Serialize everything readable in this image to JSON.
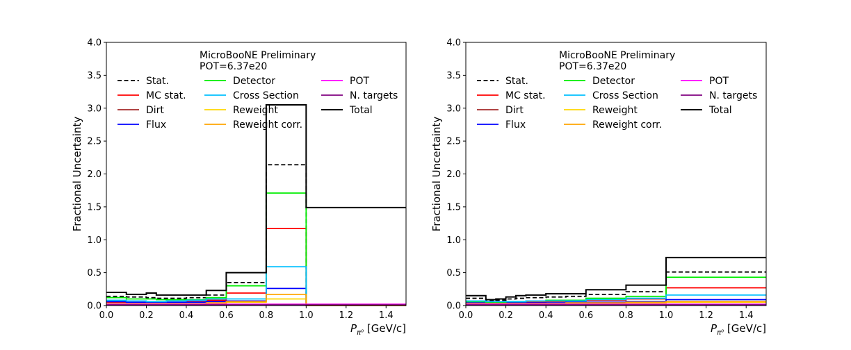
{
  "chart_data": [
    {
      "type": "line",
      "drawstyle": "steps",
      "annotation": [
        "MicroBooNE Preliminary",
        "POT=6.37e20"
      ],
      "xlabel": {
        "symbol": "P",
        "subscript": "π⁰",
        "unit": "[GeV/c]"
      },
      "ylabel": "Fractional Uncertainty",
      "xlim": [
        0,
        1.5
      ],
      "ylim": [
        0,
        4
      ],
      "xticks": [
        "0.0",
        "0.2",
        "0.4",
        "0.6",
        "0.8",
        "1.0",
        "1.2",
        "1.4"
      ],
      "yticks": [
        "0.0",
        "0.5",
        "1.0",
        "1.5",
        "2.0",
        "2.5",
        "3.0",
        "3.5",
        "4.0"
      ],
      "grid": false,
      "legend_position": "upper-center",
      "legend_columns": 3,
      "bin_edges": [
        0,
        0.1,
        0.2,
        0.25,
        0.3,
        0.4,
        0.5,
        0.6,
        0.8,
        1.0,
        1.5
      ],
      "series": [
        {
          "name": "Stat.",
          "color": "#000000",
          "dashed": true,
          "values": [
            0.14,
            0.13,
            0.12,
            0.11,
            0.11,
            0.12,
            0.16,
            0.35,
            2.14,
            0.0
          ]
        },
        {
          "name": "MC stat.",
          "color": "#ff0000",
          "values": [
            0.05,
            0.05,
            0.05,
            0.05,
            0.05,
            0.06,
            0.08,
            0.19,
            1.17,
            0.0
          ]
        },
        {
          "name": "Dirt",
          "color": "#a52a2a",
          "values": [
            0.02,
            0.02,
            0.02,
            0.02,
            0.02,
            0.02,
            0.02,
            0.02,
            0.02,
            0.02
          ]
        },
        {
          "name": "Flux",
          "color": "#0000ff",
          "values": [
            0.06,
            0.05,
            0.05,
            0.05,
            0.05,
            0.05,
            0.06,
            0.07,
            0.26,
            0.0
          ]
        },
        {
          "name": "Detector",
          "color": "#00ee00",
          "values": [
            0.12,
            0.1,
            0.1,
            0.09,
            0.09,
            0.09,
            0.12,
            0.3,
            1.71,
            0.0
          ]
        },
        {
          "name": "Cross Section",
          "color": "#00bfff",
          "values": [
            0.08,
            0.07,
            0.06,
            0.06,
            0.07,
            0.08,
            0.1,
            0.1,
            0.59,
            0.0
          ]
        },
        {
          "name": "Reweight",
          "color": "#ffd700",
          "values": [
            0.02,
            0.02,
            0.02,
            0.02,
            0.02,
            0.02,
            0.03,
            0.05,
            0.1,
            0.0
          ]
        },
        {
          "name": "Reweight corr.",
          "color": "#ffa500",
          "values": [
            0.03,
            0.03,
            0.03,
            0.03,
            0.03,
            0.03,
            0.04,
            0.06,
            0.17,
            0.0
          ]
        },
        {
          "name": "POT",
          "color": "#ff00ff",
          "values": [
            0.02,
            0.02,
            0.02,
            0.02,
            0.02,
            0.02,
            0.02,
            0.02,
            0.02,
            0.02
          ]
        },
        {
          "name": "N. targets",
          "color": "#800080",
          "values": [
            0.01,
            0.01,
            0.01,
            0.01,
            0.01,
            0.01,
            0.01,
            0.01,
            0.01,
            0.01
          ]
        },
        {
          "name": "Total",
          "color": "#000000",
          "thick": true,
          "values": [
            0.2,
            0.17,
            0.19,
            0.16,
            0.16,
            0.16,
            0.23,
            0.5,
            3.05,
            1.49
          ]
        }
      ]
    },
    {
      "type": "line",
      "drawstyle": "steps",
      "annotation": [
        "MicroBooNE Preliminary",
        "POT=6.37e20"
      ],
      "xlabel": {
        "symbol": "P",
        "subscript": "π⁰",
        "unit": "[GeV/c]"
      },
      "ylabel": "Fractional Uncertainty",
      "xlim": [
        0,
        1.5
      ],
      "ylim": [
        0,
        4
      ],
      "xticks": [
        "0.0",
        "0.2",
        "0.4",
        "0.6",
        "0.8",
        "1.0",
        "1.2",
        "1.4"
      ],
      "yticks": [
        "0.0",
        "0.5",
        "1.0",
        "1.5",
        "2.0",
        "2.5",
        "3.0",
        "3.5",
        "4.0"
      ],
      "grid": false,
      "legend_position": "upper-center",
      "legend_columns": 3,
      "bin_edges": [
        0,
        0.1,
        0.15,
        0.2,
        0.25,
        0.3,
        0.4,
        0.5,
        0.6,
        0.8,
        1.0,
        1.5
      ],
      "series": [
        {
          "name": "Stat.",
          "color": "#000000",
          "dashed": true,
          "values": [
            0.11,
            0.07,
            0.08,
            0.1,
            0.11,
            0.12,
            0.13,
            0.14,
            0.17,
            0.21,
            0.51
          ]
        },
        {
          "name": "MC stat.",
          "color": "#ff0000",
          "values": [
            0.04,
            0.04,
            0.04,
            0.05,
            0.05,
            0.05,
            0.06,
            0.07,
            0.08,
            0.1,
            0.27
          ]
        },
        {
          "name": "Dirt",
          "color": "#a52a2a",
          "values": [
            0.02,
            0.02,
            0.02,
            0.02,
            0.02,
            0.02,
            0.02,
            0.02,
            0.02,
            0.02,
            0.02
          ]
        },
        {
          "name": "Flux",
          "color": "#0000ff",
          "values": [
            0.04,
            0.04,
            0.04,
            0.04,
            0.04,
            0.04,
            0.04,
            0.05,
            0.05,
            0.06,
            0.09
          ]
        },
        {
          "name": "Detector",
          "color": "#00ee00",
          "values": [
            0.06,
            0.05,
            0.05,
            0.06,
            0.06,
            0.07,
            0.08,
            0.08,
            0.11,
            0.14,
            0.43
          ]
        },
        {
          "name": "Cross Section",
          "color": "#00bfff",
          "values": [
            0.07,
            0.06,
            0.06,
            0.06,
            0.06,
            0.07,
            0.07,
            0.07,
            0.09,
            0.11,
            0.16
          ]
        },
        {
          "name": "Reweight",
          "color": "#ffd700",
          "values": [
            0.02,
            0.02,
            0.02,
            0.02,
            0.02,
            0.02,
            0.02,
            0.03,
            0.03,
            0.04,
            0.05
          ]
        },
        {
          "name": "Reweight corr.",
          "color": "#ffa500",
          "values": [
            0.03,
            0.03,
            0.03,
            0.03,
            0.03,
            0.03,
            0.03,
            0.04,
            0.04,
            0.05,
            0.06
          ]
        },
        {
          "name": "POT",
          "color": "#ff00ff",
          "values": [
            0.02,
            0.02,
            0.02,
            0.02,
            0.02,
            0.02,
            0.02,
            0.02,
            0.02,
            0.02,
            0.02
          ]
        },
        {
          "name": "N. targets",
          "color": "#800080",
          "values": [
            0.01,
            0.01,
            0.01,
            0.01,
            0.01,
            0.01,
            0.01,
            0.01,
            0.01,
            0.01,
            0.01
          ]
        },
        {
          "name": "Total",
          "color": "#000000",
          "thick": true,
          "values": [
            0.15,
            0.09,
            0.1,
            0.13,
            0.15,
            0.16,
            0.18,
            0.18,
            0.24,
            0.31,
            0.73
          ]
        }
      ]
    }
  ]
}
